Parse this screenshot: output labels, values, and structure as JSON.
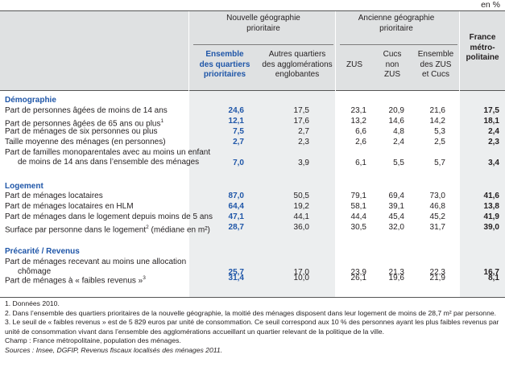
{
  "unit": "en %",
  "header": {
    "groups": {
      "new": "Nouvelle géographie prioritaire",
      "old": "Ancienne géographie prioritaire"
    },
    "columns": [
      {
        "line1": "Ensemble",
        "line2": "des quartiers",
        "line3": "prioritaires"
      },
      {
        "line1": "Autres quartiers",
        "line2": "des agglomérations",
        "line3": "englobantes"
      },
      {
        "line1": "ZUS",
        "line2": "",
        "line3": ""
      },
      {
        "line1": "Cucs",
        "line2": "non",
        "line3": "ZUS"
      },
      {
        "line1": "Ensemble",
        "line2": "des ZUS",
        "line3": "et Cucs"
      },
      {
        "line1": "France",
        "line2": "métro-",
        "line3": "politaine"
      }
    ]
  },
  "sections": {
    "demo": "Démographie",
    "logement": "Logement",
    "precarite": "Précarité / Revenus"
  },
  "rows": [
    {
      "label": "Part de personnes âgées de moins de 14 ans",
      "sup": "",
      "vals": [
        "24,6",
        "17,5",
        "23,1",
        "20,9",
        "21,6",
        "17,5"
      ]
    },
    {
      "label": "Part de personnes âgées de 65 ans ou plus",
      "sup": "1",
      "vals": [
        "12,1",
        "17,6",
        "13,2",
        "14,6",
        "14,2",
        "18,1"
      ]
    },
    {
      "label": "Part de ménages de six personnes ou plus",
      "sup": "",
      "vals": [
        "7,5",
        "2,7",
        "6,6",
        "4,8",
        "5,3",
        "2,4"
      ]
    },
    {
      "label": "Taille moyenne des ménages (en personnes)",
      "sup": "",
      "vals": [
        "2,7",
        "2,3",
        "2,6",
        "2,4",
        "2,5",
        "2,3"
      ]
    },
    {
      "label": "Part de familles monoparentales avec au moins un enfant",
      "label2": "de moins de 14 ans dans l’ensemble des ménages",
      "sup": "",
      "vals": [
        "7,0",
        "3,9",
        "6,1",
        "5,5",
        "5,7",
        "3,4"
      ]
    },
    {
      "label": "Part de ménages locataires",
      "sup": "",
      "vals": [
        "87,0",
        "50,5",
        "79,1",
        "69,4",
        "73,0",
        "41,6"
      ]
    },
    {
      "label": "Part de ménages locataires en HLM",
      "sup": "",
      "vals": [
        "64,4",
        "19,2",
        "58,1",
        "39,1",
        "46,8",
        "13,8"
      ]
    },
    {
      "label": "Part de ménages dans le logement depuis moins de 5 ans",
      "sup": "",
      "vals": [
        "47,1",
        "44,1",
        "44,4",
        "45,4",
        "45,2",
        "41,9"
      ]
    },
    {
      "label": "Surface par personne dans le logement",
      "sup": "2",
      "label_after": " (médiane en m²)",
      "vals": [
        "28,7",
        "36,0",
        "30,5",
        "32,0",
        "31,7",
        "39,0"
      ]
    },
    {
      "label": "Part de ménages recevant au moins une allocation",
      "label2": "chômage",
      "sup": "",
      "vals": [
        "25,7",
        "17,0",
        "23,9",
        "21,3",
        "22,3",
        "16,7"
      ]
    },
    {
      "label": "Part de ménages à « faibles revenus »",
      "sup": "3",
      "vals": [
        "31,4",
        "10,0",
        "26,1",
        "19,6",
        "21,9",
        "8,1"
      ]
    }
  ],
  "footnotes": [
    "1. Données 2010.",
    "2. Dans l’ensemble des quartiers prioritaires de la nouvelle géographie, la moitié des ménages disposent dans leur logement de moins de 28,7 m² par personne.",
    "3. Le seuil de « faibles revenus » est de 5 829 euros par unité de consommation. Ce seuil correspond aux 10 % des personnes ayant les plus faibles revenus par",
    "unité de consommation vivant dans l’ensemble des agglomérations accueillant un quartier relevant de la politique de la ville.",
    "Champ : France métropolitaine, population des ménages."
  ],
  "source": "Sources : Insee, DGFIP, Revenus fiscaux localisés des ménages 2011."
}
